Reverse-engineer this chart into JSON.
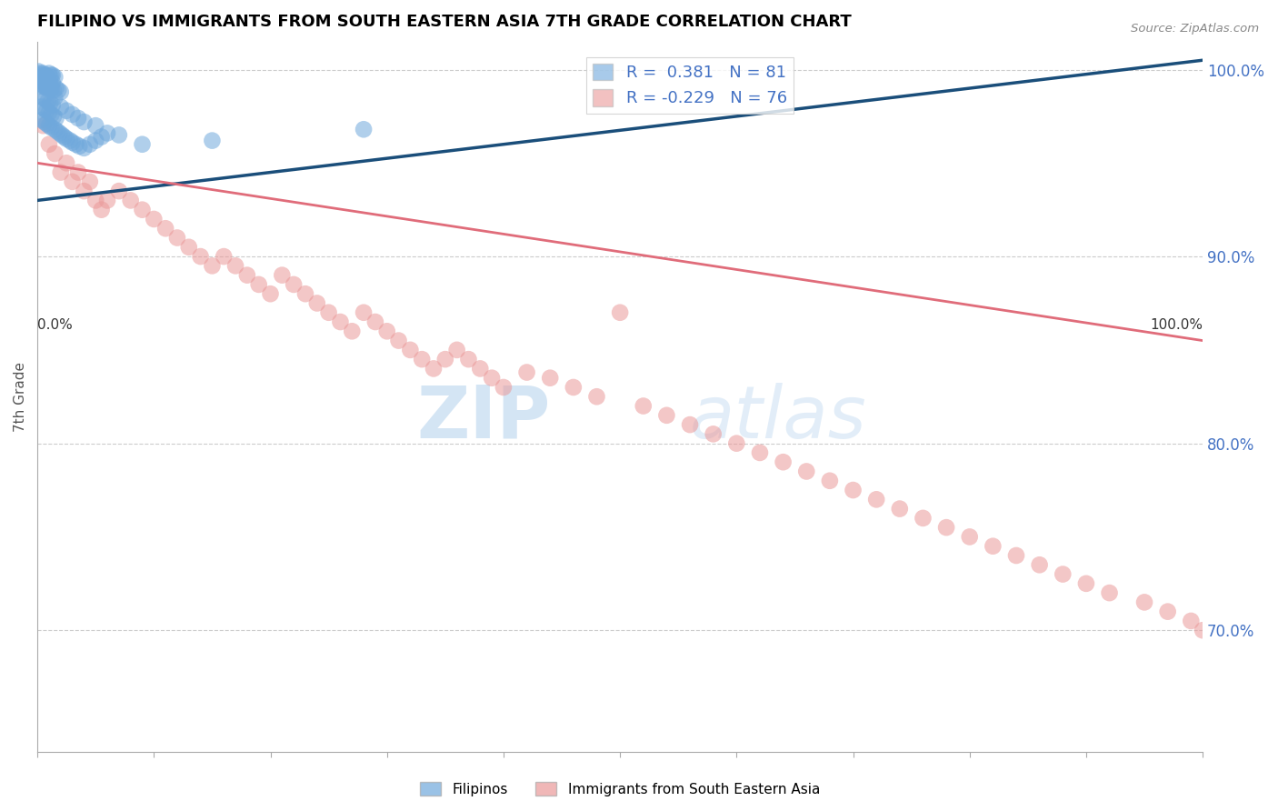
{
  "title": "FILIPINO VS IMMIGRANTS FROM SOUTH EASTERN ASIA 7TH GRADE CORRELATION CHART",
  "source": "Source: ZipAtlas.com",
  "ylabel": "7th Grade",
  "ytick_labels": [
    "100.0%",
    "90.0%",
    "80.0%",
    "70.0%"
  ],
  "ytick_values": [
    1.0,
    0.9,
    0.8,
    0.7
  ],
  "xlim": [
    0.0,
    1.0
  ],
  "ylim": [
    0.635,
    1.015
  ],
  "blue_R": 0.381,
  "blue_N": 81,
  "pink_R": -0.229,
  "pink_N": 76,
  "blue_color": "#6fa8dc",
  "pink_color": "#ea9999",
  "blue_line_color": "#1a4e7a",
  "pink_line_color": "#e06c7a",
  "legend_label_blue": "Filipinos",
  "legend_label_pink": "Immigrants from South Eastern Asia",
  "watermark_zip": "ZIP",
  "watermark_atlas": "atlas",
  "blue_scatter_x": [
    0.005,
    0.007,
    0.008,
    0.01,
    0.012,
    0.003,
    0.004,
    0.006,
    0.009,
    0.011,
    0.013,
    0.015,
    0.003,
    0.005,
    0.007,
    0.009,
    0.011,
    0.013,
    0.002,
    0.004,
    0.006,
    0.008,
    0.01,
    0.012,
    0.014,
    0.016,
    0.018,
    0.02,
    0.005,
    0.007,
    0.009,
    0.011,
    0.013,
    0.003,
    0.006,
    0.008,
    0.01,
    0.012,
    0.014,
    0.016,
    0.004,
    0.006,
    0.008,
    0.01,
    0.012,
    0.015,
    0.017,
    0.019,
    0.021,
    0.023,
    0.025,
    0.028,
    0.03,
    0.033,
    0.036,
    0.04,
    0.045,
    0.05,
    0.055,
    0.06,
    0.001,
    0.002,
    0.003,
    0.004,
    0.005,
    0.006,
    0.007,
    0.008,
    0.009,
    0.01,
    0.015,
    0.02,
    0.025,
    0.03,
    0.035,
    0.04,
    0.05,
    0.07,
    0.09,
    0.15,
    0.28
  ],
  "blue_scatter_y": [
    0.998,
    0.997,
    0.996,
    0.998,
    0.997,
    0.995,
    0.996,
    0.997,
    0.995,
    0.996,
    0.997,
    0.996,
    0.994,
    0.993,
    0.994,
    0.993,
    0.992,
    0.993,
    0.991,
    0.992,
    0.991,
    0.99,
    0.991,
    0.99,
    0.989,
    0.99,
    0.989,
    0.988,
    0.985,
    0.984,
    0.983,
    0.982,
    0.981,
    0.98,
    0.979,
    0.978,
    0.977,
    0.976,
    0.975,
    0.974,
    0.973,
    0.972,
    0.971,
    0.97,
    0.969,
    0.968,
    0.967,
    0.966,
    0.965,
    0.964,
    0.963,
    0.962,
    0.961,
    0.96,
    0.959,
    0.958,
    0.96,
    0.962,
    0.964,
    0.966,
    0.999,
    0.998,
    0.997,
    0.996,
    0.995,
    0.994,
    0.993,
    0.992,
    0.991,
    0.99,
    0.985,
    0.98,
    0.978,
    0.976,
    0.974,
    0.972,
    0.97,
    0.965,
    0.96,
    0.962,
    0.968
  ],
  "pink_scatter_x": [
    0.005,
    0.01,
    0.015,
    0.02,
    0.025,
    0.03,
    0.035,
    0.04,
    0.045,
    0.05,
    0.055,
    0.06,
    0.07,
    0.08,
    0.09,
    0.1,
    0.11,
    0.12,
    0.13,
    0.14,
    0.15,
    0.16,
    0.17,
    0.18,
    0.19,
    0.2,
    0.21,
    0.22,
    0.23,
    0.24,
    0.25,
    0.26,
    0.27,
    0.28,
    0.29,
    0.3,
    0.31,
    0.32,
    0.33,
    0.34,
    0.35,
    0.36,
    0.37,
    0.38,
    0.39,
    0.4,
    0.42,
    0.44,
    0.46,
    0.48,
    0.5,
    0.52,
    0.54,
    0.56,
    0.58,
    0.6,
    0.62,
    0.64,
    0.66,
    0.68,
    0.7,
    0.72,
    0.74,
    0.76,
    0.78,
    0.8,
    0.82,
    0.84,
    0.86,
    0.88,
    0.9,
    0.92,
    0.95,
    0.97,
    0.99,
    1.0
  ],
  "pink_scatter_y": [
    0.97,
    0.96,
    0.955,
    0.945,
    0.95,
    0.94,
    0.945,
    0.935,
    0.94,
    0.93,
    0.925,
    0.93,
    0.935,
    0.93,
    0.925,
    0.92,
    0.915,
    0.91,
    0.905,
    0.9,
    0.895,
    0.9,
    0.895,
    0.89,
    0.885,
    0.88,
    0.89,
    0.885,
    0.88,
    0.875,
    0.87,
    0.865,
    0.86,
    0.87,
    0.865,
    0.86,
    0.855,
    0.85,
    0.845,
    0.84,
    0.845,
    0.85,
    0.845,
    0.84,
    0.835,
    0.83,
    0.838,
    0.835,
    0.83,
    0.825,
    0.87,
    0.82,
    0.815,
    0.81,
    0.805,
    0.8,
    0.795,
    0.79,
    0.785,
    0.78,
    0.775,
    0.77,
    0.765,
    0.76,
    0.755,
    0.75,
    0.745,
    0.74,
    0.735,
    0.73,
    0.725,
    0.72,
    0.715,
    0.71,
    0.705,
    0.7
  ],
  "blue_trend_x": [
    0.0,
    1.0
  ],
  "blue_trend_y": [
    0.93,
    1.005
  ],
  "pink_trend_x": [
    0.0,
    1.0
  ],
  "pink_trend_y": [
    0.95,
    0.855
  ]
}
